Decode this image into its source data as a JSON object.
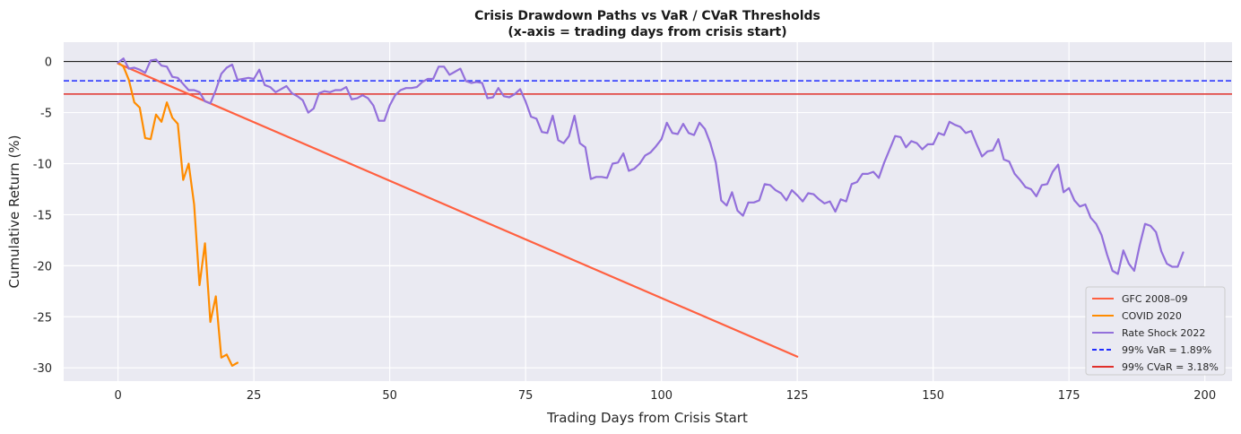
{
  "chart_data": {
    "type": "line",
    "title": "Crisis Drawdown Paths vs VaR / CVaR Thresholds",
    "subtitle": "(x-axis = trading days from crisis start)",
    "xlabel": "Trading Days from Crisis Start",
    "ylabel": "Cumulative Return (%)",
    "xlim": [
      -10,
      205
    ],
    "ylim": [
      -31.3,
      1.9
    ],
    "x_ticks": [
      0,
      25,
      50,
      75,
      100,
      125,
      150,
      175,
      200
    ],
    "y_ticks": [
      0,
      -5,
      -10,
      -15,
      -20,
      -25,
      -30
    ],
    "grid": true,
    "legend_position": "lower-right",
    "zero_line": {
      "y": 0,
      "color": "#000000"
    },
    "thresholds": [
      {
        "name": "99% VaR = 1.89%",
        "y": -1.89,
        "color": "#1f2bff",
        "style": "dashed"
      },
      {
        "name": "99% CVaR = 3.18%",
        "y": -3.18,
        "color": "#e0302b",
        "style": "solid"
      }
    ],
    "series": [
      {
        "name": "GFC 2008–09",
        "color": "#ff6040",
        "x": [
          0,
          125
        ],
        "y": [
          -0.2,
          -28.9
        ]
      },
      {
        "name": "COVID 2020",
        "color": "#ff8c00",
        "x": [
          0,
          1,
          2,
          3,
          4,
          5,
          6,
          7,
          8,
          9,
          10,
          11,
          12,
          13,
          14,
          15,
          16,
          17,
          18,
          19,
          20,
          21,
          22
        ],
        "y": [
          -0.1,
          -0.5,
          -1.8,
          -4.0,
          -4.5,
          -7.5,
          -7.6,
          -5.2,
          -5.9,
          -4.0,
          -5.5,
          -6.1,
          -11.6,
          -10.0,
          -14.0,
          -21.9,
          -17.8,
          -25.5,
          -23.0,
          -29.0,
          -28.7,
          -29.8,
          -29.5
        ]
      },
      {
        "name": "Rate Shock 2022",
        "color": "#9370db",
        "x": [
          0,
          1,
          2,
          3,
          4,
          5,
          6,
          7,
          8,
          9,
          10,
          11,
          12,
          13,
          14,
          15,
          16,
          17,
          18,
          19,
          20,
          21,
          22,
          23,
          24,
          25,
          26,
          27,
          28,
          29,
          30,
          31,
          32,
          33,
          34,
          35,
          36,
          37,
          38,
          39,
          40,
          41,
          42,
          43,
          44,
          45,
          46,
          47,
          48,
          49,
          50,
          51,
          52,
          53,
          54,
          55,
          56,
          57,
          58,
          59,
          60,
          61,
          62,
          63,
          64,
          65,
          66,
          67,
          68,
          69,
          70,
          71,
          72,
          73,
          74,
          75,
          76,
          77,
          78,
          79,
          80,
          81,
          82,
          83,
          84,
          85,
          86,
          87,
          88,
          89,
          90,
          91,
          92,
          93,
          94,
          95,
          96,
          97,
          98,
          99,
          100,
          101,
          102,
          103,
          104,
          105,
          106,
          107,
          108,
          109,
          110,
          111,
          112,
          113,
          114,
          115,
          116,
          117,
          118,
          119,
          120,
          121,
          122,
          123,
          124,
          125,
          126,
          127,
          128,
          129,
          130,
          131,
          132,
          133,
          134,
          135,
          136,
          137,
          138,
          139,
          140,
          141,
          142,
          143,
          144,
          145,
          146,
          147,
          148,
          149,
          150,
          151,
          152,
          153,
          154,
          155,
          156,
          157,
          158,
          159,
          160,
          161,
          162,
          163,
          164,
          165,
          166,
          167,
          168,
          169,
          170,
          171,
          172,
          173,
          174,
          175,
          176,
          177,
          178,
          179,
          180,
          181,
          182,
          183,
          184,
          185,
          186,
          187,
          188,
          189,
          190,
          191,
          192,
          193,
          194,
          195,
          196
        ],
        "y": [
          -0.1,
          0.3,
          -0.7,
          -0.6,
          -0.8,
          -1.1,
          0.1,
          0.2,
          -0.4,
          -0.5,
          -1.5,
          -1.6,
          -2.2,
          -2.8,
          -2.8,
          -3.0,
          -3.9,
          -4.1,
          -2.8,
          -1.2,
          -0.6,
          -0.3,
          -1.8,
          -1.7,
          -1.6,
          -1.7,
          -0.8,
          -2.3,
          -2.5,
          -3.0,
          -2.7,
          -2.4,
          -3.1,
          -3.4,
          -3.8,
          -5.0,
          -4.6,
          -3.1,
          -2.9,
          -3.0,
          -2.8,
          -2.8,
          -2.5,
          -3.7,
          -3.6,
          -3.3,
          -3.6,
          -4.3,
          -5.8,
          -5.8,
          -4.3,
          -3.3,
          -2.8,
          -2.6,
          -2.6,
          -2.5,
          -2.0,
          -1.7,
          -1.7,
          -0.5,
          -0.5,
          -1.3,
          -1.0,
          -0.7,
          -1.9,
          -2.1,
          -2.0,
          -2.1,
          -3.6,
          -3.5,
          -2.6,
          -3.4,
          -3.5,
          -3.2,
          -2.7,
          -3.9,
          -5.4,
          -5.6,
          -6.9,
          -7.0,
          -5.3,
          -7.7,
          -8.0,
          -7.3,
          -5.3,
          -8.0,
          -8.4,
          -11.5,
          -11.3,
          -11.3,
          -11.4,
          -10.0,
          -9.9,
          -9.0,
          -10.7,
          -10.5,
          -10.0,
          -9.2,
          -8.9,
          -8.3,
          -7.6,
          -6.0,
          -7.0,
          -7.1,
          -6.1,
          -7.0,
          -7.2,
          -6.0,
          -6.6,
          -8.0,
          -9.9,
          -13.6,
          -14.1,
          -12.8,
          -14.6,
          -15.1,
          -13.8,
          -13.8,
          -13.6,
          -12.0,
          -12.1,
          -12.6,
          -12.9,
          -13.6,
          -12.6,
          -13.1,
          -13.7,
          -12.9,
          -13.0,
          -13.5,
          -13.9,
          -13.7,
          -14.7,
          -13.5,
          -13.7,
          -12.0,
          -11.8,
          -11.0,
          -11.0,
          -10.8,
          -11.4,
          -9.9,
          -8.6,
          -7.3,
          -7.4,
          -8.4,
          -7.8,
          -8.0,
          -8.6,
          -8.1,
          -8.1,
          -7.0,
          -7.2,
          -5.9,
          -6.2,
          -6.4,
          -7.0,
          -6.8,
          -8.1,
          -9.3,
          -8.8,
          -8.7,
          -7.6,
          -9.6,
          -9.8,
          -11.0,
          -11.6,
          -12.3,
          -12.5,
          -13.2,
          -12.1,
          -12.0,
          -10.8,
          -10.1,
          -12.8,
          -12.4,
          -13.6,
          -14.2,
          -14.0,
          -15.3,
          -15.9,
          -17.0,
          -18.9,
          -20.5,
          -20.8,
          -18.5,
          -19.8,
          -20.5,
          -18.0,
          -15.9,
          -16.1,
          -16.7,
          -18.6,
          -19.8,
          -20.1,
          -20.1,
          -18.7
        ]
      }
    ]
  }
}
